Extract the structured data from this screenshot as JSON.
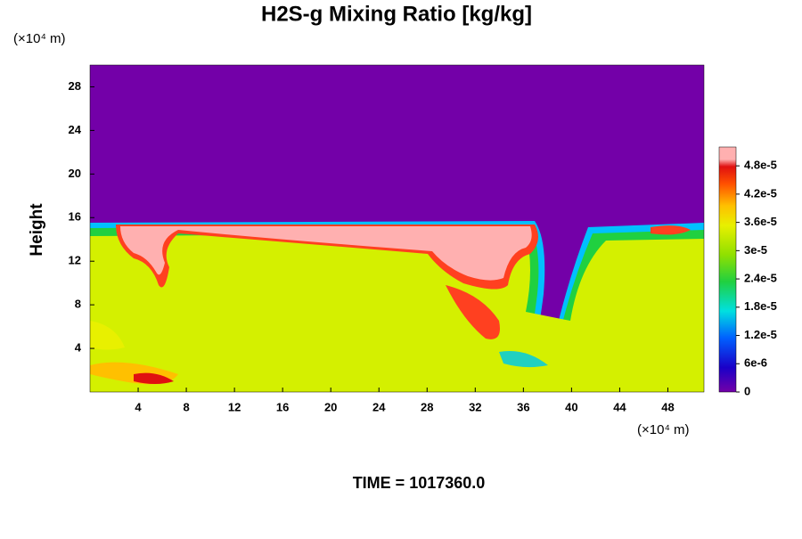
{
  "chart_data": {
    "type": "contour",
    "title": "H2S-g Mixing Ratio [kg/kg]",
    "ylabel": "Height",
    "yunit": "(×10⁴ m)",
    "xunit": "(×10⁴ m)",
    "footer": "TIME = 1017360.0",
    "xlim": [
      0,
      51
    ],
    "xticks": [
      4,
      8,
      12,
      16,
      20,
      24,
      28,
      32,
      36,
      40,
      44,
      48
    ],
    "ylim": [
      0,
      30
    ],
    "yticks": [
      4,
      8,
      12,
      16,
      20,
      24,
      28
    ],
    "clim": [
      0,
      5.2e-05
    ],
    "cticks": [
      0,
      {
        "value": 6e-06,
        "label": "6e-6"
      },
      {
        "value": 1.2e-05,
        "label": "1.2e-5"
      },
      {
        "value": 1.8e-05,
        "label": "1.8e-5"
      },
      {
        "value": 2.4e-05,
        "label": "2.4e-5"
      },
      {
        "value": 3e-05,
        "label": "3e-5"
      },
      {
        "value": 3.6e-05,
        "label": "3.6e-5"
      },
      {
        "value": 4.2e-05,
        "label": "4.2e-5"
      },
      {
        "value": 4.8e-05,
        "label": "4.8e-5"
      }
    ]
  }
}
